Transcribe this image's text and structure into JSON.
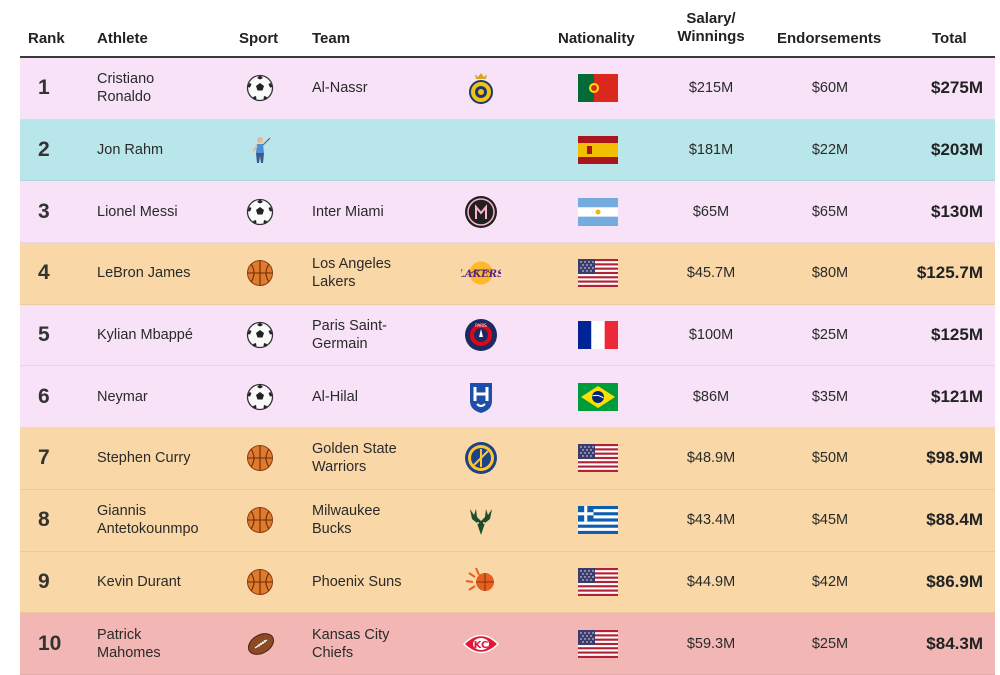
{
  "headers": {
    "rank": "Rank",
    "athlete": "Athlete",
    "sport": "Sport",
    "team": "Team",
    "nationality": "Nationality",
    "salary_line1": "Salary/",
    "salary_line2": "Winnings",
    "endorsements": "Endorsements",
    "total": "Total"
  },
  "row_colors": {
    "soccer": "#f7e2f7",
    "golf": "#b9e6ea",
    "basketball": "#f9d7a6",
    "football": "#f2b7b4"
  },
  "rows": [
    {
      "rank": "1",
      "athlete_line1": "Cristiano",
      "athlete_line2": "Ronaldo",
      "sport": "soccer-ball-icon",
      "team_line1": "Al-Nassr",
      "team_line2": "",
      "team_logo": "al-nassr-logo-icon",
      "nationality": "portugal-flag-icon",
      "salary": "$215M",
      "endorsements": "$60M",
      "total": "$275M"
    },
    {
      "rank": "2",
      "athlete_line1": "Jon Rahm",
      "athlete_line2": "",
      "sport": "golfer-icon",
      "team_line1": "",
      "team_line2": "",
      "team_logo": "",
      "nationality": "spain-flag-icon",
      "salary": "$181M",
      "endorsements": "$22M",
      "total": "$203M"
    },
    {
      "rank": "3",
      "athlete_line1": "Lionel Messi",
      "athlete_line2": "",
      "sport": "soccer-ball-icon",
      "team_line1": "Inter Miami",
      "team_line2": "",
      "team_logo": "inter-miami-logo-icon",
      "nationality": "argentina-flag-icon",
      "salary": "$65M",
      "endorsements": "$65M",
      "total": "$130M"
    },
    {
      "rank": "4",
      "athlete_line1": "LeBron James",
      "athlete_line2": "",
      "sport": "basketball-icon",
      "team_line1": "Los Angeles",
      "team_line2": "Lakers",
      "team_logo": "lakers-logo-icon",
      "nationality": "usa-flag-icon",
      "salary": "$45.7M",
      "endorsements": "$80M",
      "total": "$125.7M"
    },
    {
      "rank": "5",
      "athlete_line1": "Kylian Mbappé",
      "athlete_line2": "",
      "sport": "soccer-ball-icon",
      "team_line1": "Paris Saint-",
      "team_line2": "Germain",
      "team_logo": "psg-logo-icon",
      "nationality": "france-flag-icon",
      "salary": "$100M",
      "endorsements": "$25M",
      "total": "$125M"
    },
    {
      "rank": "6",
      "athlete_line1": "Neymar",
      "athlete_line2": "",
      "sport": "soccer-ball-icon",
      "team_line1": "Al-Hilal",
      "team_line2": "",
      "team_logo": "al-hilal-logo-icon",
      "nationality": "brazil-flag-icon",
      "salary": "$86M",
      "endorsements": "$35M",
      "total": "$121M"
    },
    {
      "rank": "7",
      "athlete_line1": "Stephen Curry",
      "athlete_line2": "",
      "sport": "basketball-icon",
      "team_line1": "Golden State",
      "team_line2": "Warriors",
      "team_logo": "warriors-logo-icon",
      "nationality": "usa-flag-icon",
      "salary": "$48.9M",
      "endorsements": "$50M",
      "total": "$98.9M"
    },
    {
      "rank": "8",
      "athlete_line1": "Giannis",
      "athlete_line2": "Antetokounmpo",
      "sport": "basketball-icon",
      "team_line1": "Milwaukee",
      "team_line2": "Bucks",
      "team_logo": "bucks-logo-icon",
      "nationality": "greece-flag-icon",
      "salary": "$43.4M",
      "endorsements": "$45M",
      "total": "$88.4M"
    },
    {
      "rank": "9",
      "athlete_line1": "Kevin Durant",
      "athlete_line2": "",
      "sport": "basketball-icon",
      "team_line1": "Phoenix Suns",
      "team_line2": "",
      "team_logo": "suns-logo-icon",
      "nationality": "usa-flag-icon",
      "salary": "$44.9M",
      "endorsements": "$42M",
      "total": "$86.9M"
    },
    {
      "rank": "10",
      "athlete_line1": "Patrick",
      "athlete_line2": "Mahomes",
      "sport": "american-football-icon",
      "team_line1": "Kansas City",
      "team_line2": "Chiefs",
      "team_logo": "chiefs-logo-icon",
      "nationality": "usa-flag-icon",
      "salary": "$59.3M",
      "endorsements": "$25M",
      "total": "$84.3M"
    }
  ]
}
